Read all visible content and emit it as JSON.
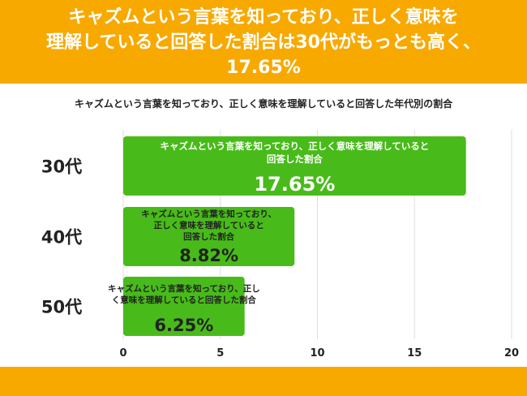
{
  "header": {
    "line1": "キャズムという言葉を知っており、正しく意味を",
    "line2": "理解していると回答した割合は30代がもっとも高く、",
    "line3": "17.65%"
  },
  "chart_data": {
    "type": "bar",
    "orientation": "horizontal",
    "title": "キャズムという言葉を知っており、正しく意味を理解していると回答した年代別の割合",
    "categories": [
      "30代",
      "40代",
      "50代"
    ],
    "values": [
      17.65,
      8.82,
      6.25
    ],
    "value_labels": [
      "17.65%",
      "8.82%",
      "6.25%"
    ],
    "bar_label_lines": [
      [
        "キャズムという言葉を知っており、正しく意味を理解していると",
        "回答した割合"
      ],
      [
        "キャズムという言葉を知っており、",
        "正しく意味を理解していると",
        "回答した割合"
      ],
      [
        "キャズムという言葉を知っており、正し",
        "く意味を理解していると回答した割合"
      ]
    ],
    "xlim": [
      0,
      20
    ],
    "xticks": [
      "0",
      "5",
      "10",
      "15",
      "20"
    ],
    "grid": true,
    "colors": {
      "bar": "#48bb1a",
      "header": "#f8a900"
    }
  }
}
